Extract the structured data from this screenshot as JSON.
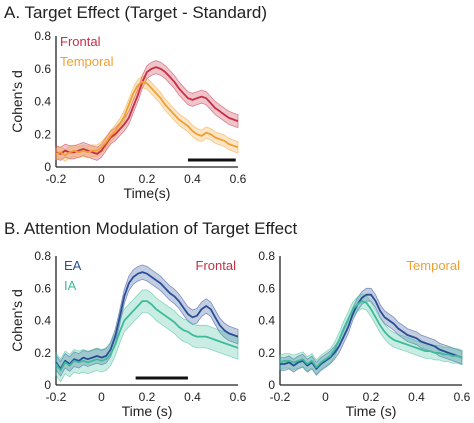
{
  "titles": {
    "a": "A. Target Effect (Target - Standard)",
    "b": "B. Attention Modulation of Target Effect"
  },
  "chart_data": [
    {
      "type": "line",
      "xlabel": "Time(s)",
      "ylabel": "Cohen's d",
      "xlim": [
        -0.2,
        0.6
      ],
      "ylim": [
        0,
        0.8
      ],
      "xticks": [
        "-0.2",
        "0",
        "0.2",
        "0.4",
        "0.6"
      ],
      "yticks": [
        "0",
        "0.2",
        "0.4",
        "0.6",
        "0.8"
      ],
      "legend": "top-left",
      "significance_bar": [
        0.38,
        0.59
      ],
      "x": [
        -0.2,
        -0.18,
        -0.16,
        -0.14,
        -0.12,
        -0.1,
        -0.08,
        -0.06,
        -0.04,
        -0.02,
        0,
        0.02,
        0.04,
        0.06,
        0.08,
        0.1,
        0.12,
        0.14,
        0.16,
        0.18,
        0.2,
        0.22,
        0.24,
        0.26,
        0.28,
        0.3,
        0.32,
        0.34,
        0.36,
        0.38,
        0.4,
        0.42,
        0.44,
        0.46,
        0.48,
        0.5,
        0.52,
        0.54,
        0.56,
        0.58,
        0.6
      ],
      "series": [
        {
          "name": "Frontal",
          "color": "#c62f44",
          "values": [
            0.09,
            0.08,
            0.1,
            0.09,
            0.09,
            0.1,
            0.11,
            0.1,
            0.09,
            0.08,
            0.1,
            0.14,
            0.18,
            0.2,
            0.23,
            0.26,
            0.3,
            0.37,
            0.44,
            0.52,
            0.58,
            0.6,
            0.61,
            0.6,
            0.58,
            0.55,
            0.52,
            0.48,
            0.45,
            0.42,
            0.41,
            0.42,
            0.43,
            0.42,
            0.39,
            0.36,
            0.34,
            0.32,
            0.3,
            0.29,
            0.28
          ],
          "band": 0.04
        },
        {
          "name": "Temporal",
          "color": "#f0a033",
          "values": [
            0.08,
            0.09,
            0.07,
            0.09,
            0.1,
            0.09,
            0.1,
            0.09,
            0.1,
            0.1,
            0.12,
            0.15,
            0.19,
            0.22,
            0.26,
            0.31,
            0.38,
            0.45,
            0.5,
            0.52,
            0.51,
            0.48,
            0.45,
            0.42,
            0.38,
            0.35,
            0.32,
            0.29,
            0.27,
            0.25,
            0.22,
            0.2,
            0.19,
            0.21,
            0.2,
            0.18,
            0.17,
            0.16,
            0.14,
            0.13,
            0.12
          ],
          "band": 0.035
        }
      ]
    },
    {
      "type": "line",
      "xlabel": "Time (s)",
      "ylabel": "Cohen's d",
      "xlim": [
        -0.2,
        0.6
      ],
      "ylim": [
        0,
        0.8
      ],
      "xticks": [
        "-0.2",
        "0",
        "0.2",
        "0.4",
        "0.6"
      ],
      "yticks": [
        "0",
        "0.2",
        "0.4",
        "0.6",
        "0.8"
      ],
      "legend": "top-left",
      "annotation": "Frontal",
      "annotation_color": "#c62f44",
      "significance_bar": [
        0.15,
        0.38
      ],
      "x": [
        -0.2,
        -0.18,
        -0.16,
        -0.14,
        -0.12,
        -0.1,
        -0.08,
        -0.06,
        -0.04,
        -0.02,
        0,
        0.02,
        0.04,
        0.06,
        0.08,
        0.1,
        0.12,
        0.14,
        0.16,
        0.18,
        0.2,
        0.22,
        0.24,
        0.26,
        0.28,
        0.3,
        0.32,
        0.34,
        0.36,
        0.38,
        0.4,
        0.42,
        0.44,
        0.46,
        0.48,
        0.5,
        0.52,
        0.54,
        0.56,
        0.58,
        0.6
      ],
      "series": [
        {
          "name": "EA",
          "color": "#2a4e96",
          "values": [
            0.14,
            0.1,
            0.15,
            0.13,
            0.16,
            0.15,
            0.17,
            0.16,
            0.17,
            0.18,
            0.17,
            0.18,
            0.22,
            0.3,
            0.42,
            0.55,
            0.63,
            0.67,
            0.69,
            0.7,
            0.69,
            0.67,
            0.65,
            0.63,
            0.6,
            0.57,
            0.55,
            0.52,
            0.48,
            0.44,
            0.42,
            0.43,
            0.47,
            0.49,
            0.47,
            0.42,
            0.37,
            0.34,
            0.32,
            0.31,
            0.3
          ],
          "band": 0.045
        },
        {
          "name": "IA",
          "color": "#3dbb9a",
          "values": [
            0.13,
            0.09,
            0.14,
            0.12,
            0.15,
            0.14,
            0.15,
            0.14,
            0.15,
            0.16,
            0.15,
            0.16,
            0.19,
            0.25,
            0.33,
            0.4,
            0.43,
            0.46,
            0.49,
            0.52,
            0.52,
            0.5,
            0.47,
            0.45,
            0.43,
            0.41,
            0.39,
            0.36,
            0.34,
            0.33,
            0.31,
            0.3,
            0.3,
            0.3,
            0.29,
            0.28,
            0.27,
            0.26,
            0.25,
            0.24,
            0.23
          ],
          "band": 0.07
        }
      ]
    },
    {
      "type": "line",
      "xlabel": "Time (s)",
      "ylabel": "",
      "xlim": [
        -0.2,
        0.6
      ],
      "ylim": [
        0,
        0.8
      ],
      "xticks": [
        "-0.2",
        "0",
        "0.2",
        "0.4",
        "0.6"
      ],
      "yticks": [
        "0",
        "0.2",
        "0.4",
        "0.6",
        "0.8"
      ],
      "legend": "none",
      "annotation": "Temporal",
      "annotation_color": "#f0a033",
      "significance_bar": null,
      "x": [
        -0.2,
        -0.18,
        -0.16,
        -0.14,
        -0.12,
        -0.1,
        -0.08,
        -0.06,
        -0.04,
        -0.02,
        0,
        0.02,
        0.04,
        0.06,
        0.08,
        0.1,
        0.12,
        0.14,
        0.16,
        0.18,
        0.2,
        0.22,
        0.24,
        0.26,
        0.28,
        0.3,
        0.32,
        0.34,
        0.36,
        0.38,
        0.4,
        0.42,
        0.44,
        0.46,
        0.48,
        0.5,
        0.52,
        0.54,
        0.56,
        0.58,
        0.6
      ],
      "series": [
        {
          "name": "EA",
          "color": "#2a4e96",
          "values": [
            0.13,
            0.13,
            0.14,
            0.12,
            0.14,
            0.15,
            0.12,
            0.14,
            0.1,
            0.13,
            0.15,
            0.17,
            0.2,
            0.24,
            0.3,
            0.36,
            0.44,
            0.5,
            0.54,
            0.56,
            0.56,
            0.52,
            0.46,
            0.42,
            0.4,
            0.38,
            0.35,
            0.33,
            0.31,
            0.3,
            0.29,
            0.27,
            0.26,
            0.25,
            0.24,
            0.22,
            0.21,
            0.2,
            0.19,
            0.18,
            0.17
          ],
          "band": 0.04
        },
        {
          "name": "IA",
          "color": "#3dbb9a",
          "values": [
            0.14,
            0.15,
            0.15,
            0.14,
            0.15,
            0.16,
            0.13,
            0.15,
            0.11,
            0.14,
            0.16,
            0.18,
            0.22,
            0.28,
            0.35,
            0.41,
            0.47,
            0.5,
            0.52,
            0.51,
            0.47,
            0.42,
            0.37,
            0.33,
            0.3,
            0.28,
            0.27,
            0.26,
            0.25,
            0.24,
            0.23,
            0.22,
            0.21,
            0.21,
            0.2,
            0.2,
            0.19,
            0.19,
            0.18,
            0.18,
            0.17
          ],
          "band": 0.045
        }
      ]
    }
  ]
}
